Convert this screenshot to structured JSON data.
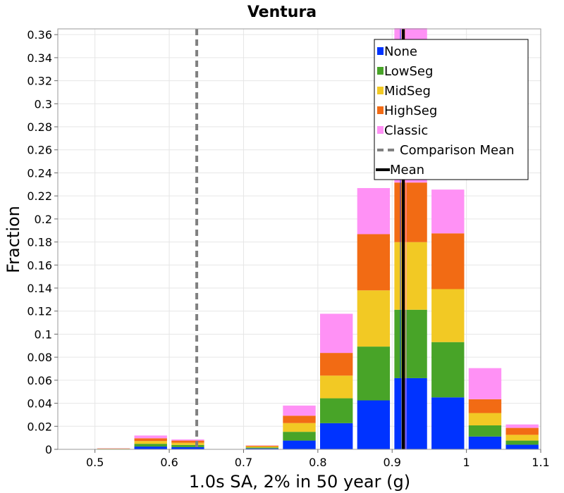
{
  "chart_data": {
    "type": "bar",
    "stacked": true,
    "title": "Ventura",
    "xlabel": "1.0s SA, 2% in 50 year (g)",
    "ylabel": "Fraction",
    "xlim": [
      0.45,
      1.1
    ],
    "ylim": [
      0,
      0.365
    ],
    "bin_width": 0.05,
    "x_ticks": [
      "0.5",
      "0.6",
      "0.7",
      "0.8",
      "0.9",
      "1",
      "1.1"
    ],
    "y_ticks": [
      "0",
      "0.02",
      "0.04",
      "0.06",
      "0.08",
      "0.1",
      "0.12",
      "0.14",
      "0.16",
      "0.18",
      "0.2",
      "0.22",
      "0.24",
      "0.26",
      "0.28",
      "0.3",
      "0.32",
      "0.34",
      "0.36"
    ],
    "grid": true,
    "legend_position": "top-right",
    "bins": [
      0.525,
      0.575,
      0.625,
      0.675,
      0.725,
      0.775,
      0.825,
      0.875,
      0.925,
      0.975,
      1.025,
      1.075
    ],
    "series": [
      {
        "name": "None",
        "color": "#0033ff",
        "values": [
          0.0002,
          0.0024,
          0.0019,
          0,
          0.0008,
          0.0076,
          0.0227,
          0.0425,
          0.0618,
          0.0451,
          0.0111,
          0.004
        ]
      },
      {
        "name": "LowSeg",
        "color": "#48a428",
        "values": [
          0.0002,
          0.0024,
          0.0019,
          0,
          0.0008,
          0.0076,
          0.0216,
          0.0467,
          0.0594,
          0.048,
          0.0097,
          0.0036
        ]
      },
      {
        "name": "MidSeg",
        "color": "#f2c924",
        "values": [
          0.0002,
          0.0024,
          0.0019,
          0,
          0.0008,
          0.0076,
          0.0197,
          0.0488,
          0.0587,
          0.046,
          0.0107,
          0.005
        ]
      },
      {
        "name": "HighSeg",
        "color": "#f26b14",
        "values": [
          0.0002,
          0.0024,
          0.0019,
          0,
          0.0008,
          0.0064,
          0.0197,
          0.0488,
          0.0517,
          0.0484,
          0.012,
          0.006
        ]
      },
      {
        "name": "Classic",
        "color": "#ff91f5",
        "values": [
          0.0002,
          0.0024,
          0.001,
          0,
          0.0002,
          0.0088,
          0.034,
          0.04,
          0.134,
          0.038,
          0.027,
          0.003
        ]
      }
    ],
    "lines": [
      {
        "name": "Comparison Mean",
        "x": 0.637,
        "color": "#808080",
        "style": "dashed"
      },
      {
        "name": "Mean",
        "x": 0.915,
        "color": "#000000",
        "style": "solid"
      }
    ],
    "legend_entries": [
      "None",
      "LowSeg",
      "MidSeg",
      "HighSeg",
      "Classic",
      "Comparison Mean",
      "Mean"
    ]
  }
}
